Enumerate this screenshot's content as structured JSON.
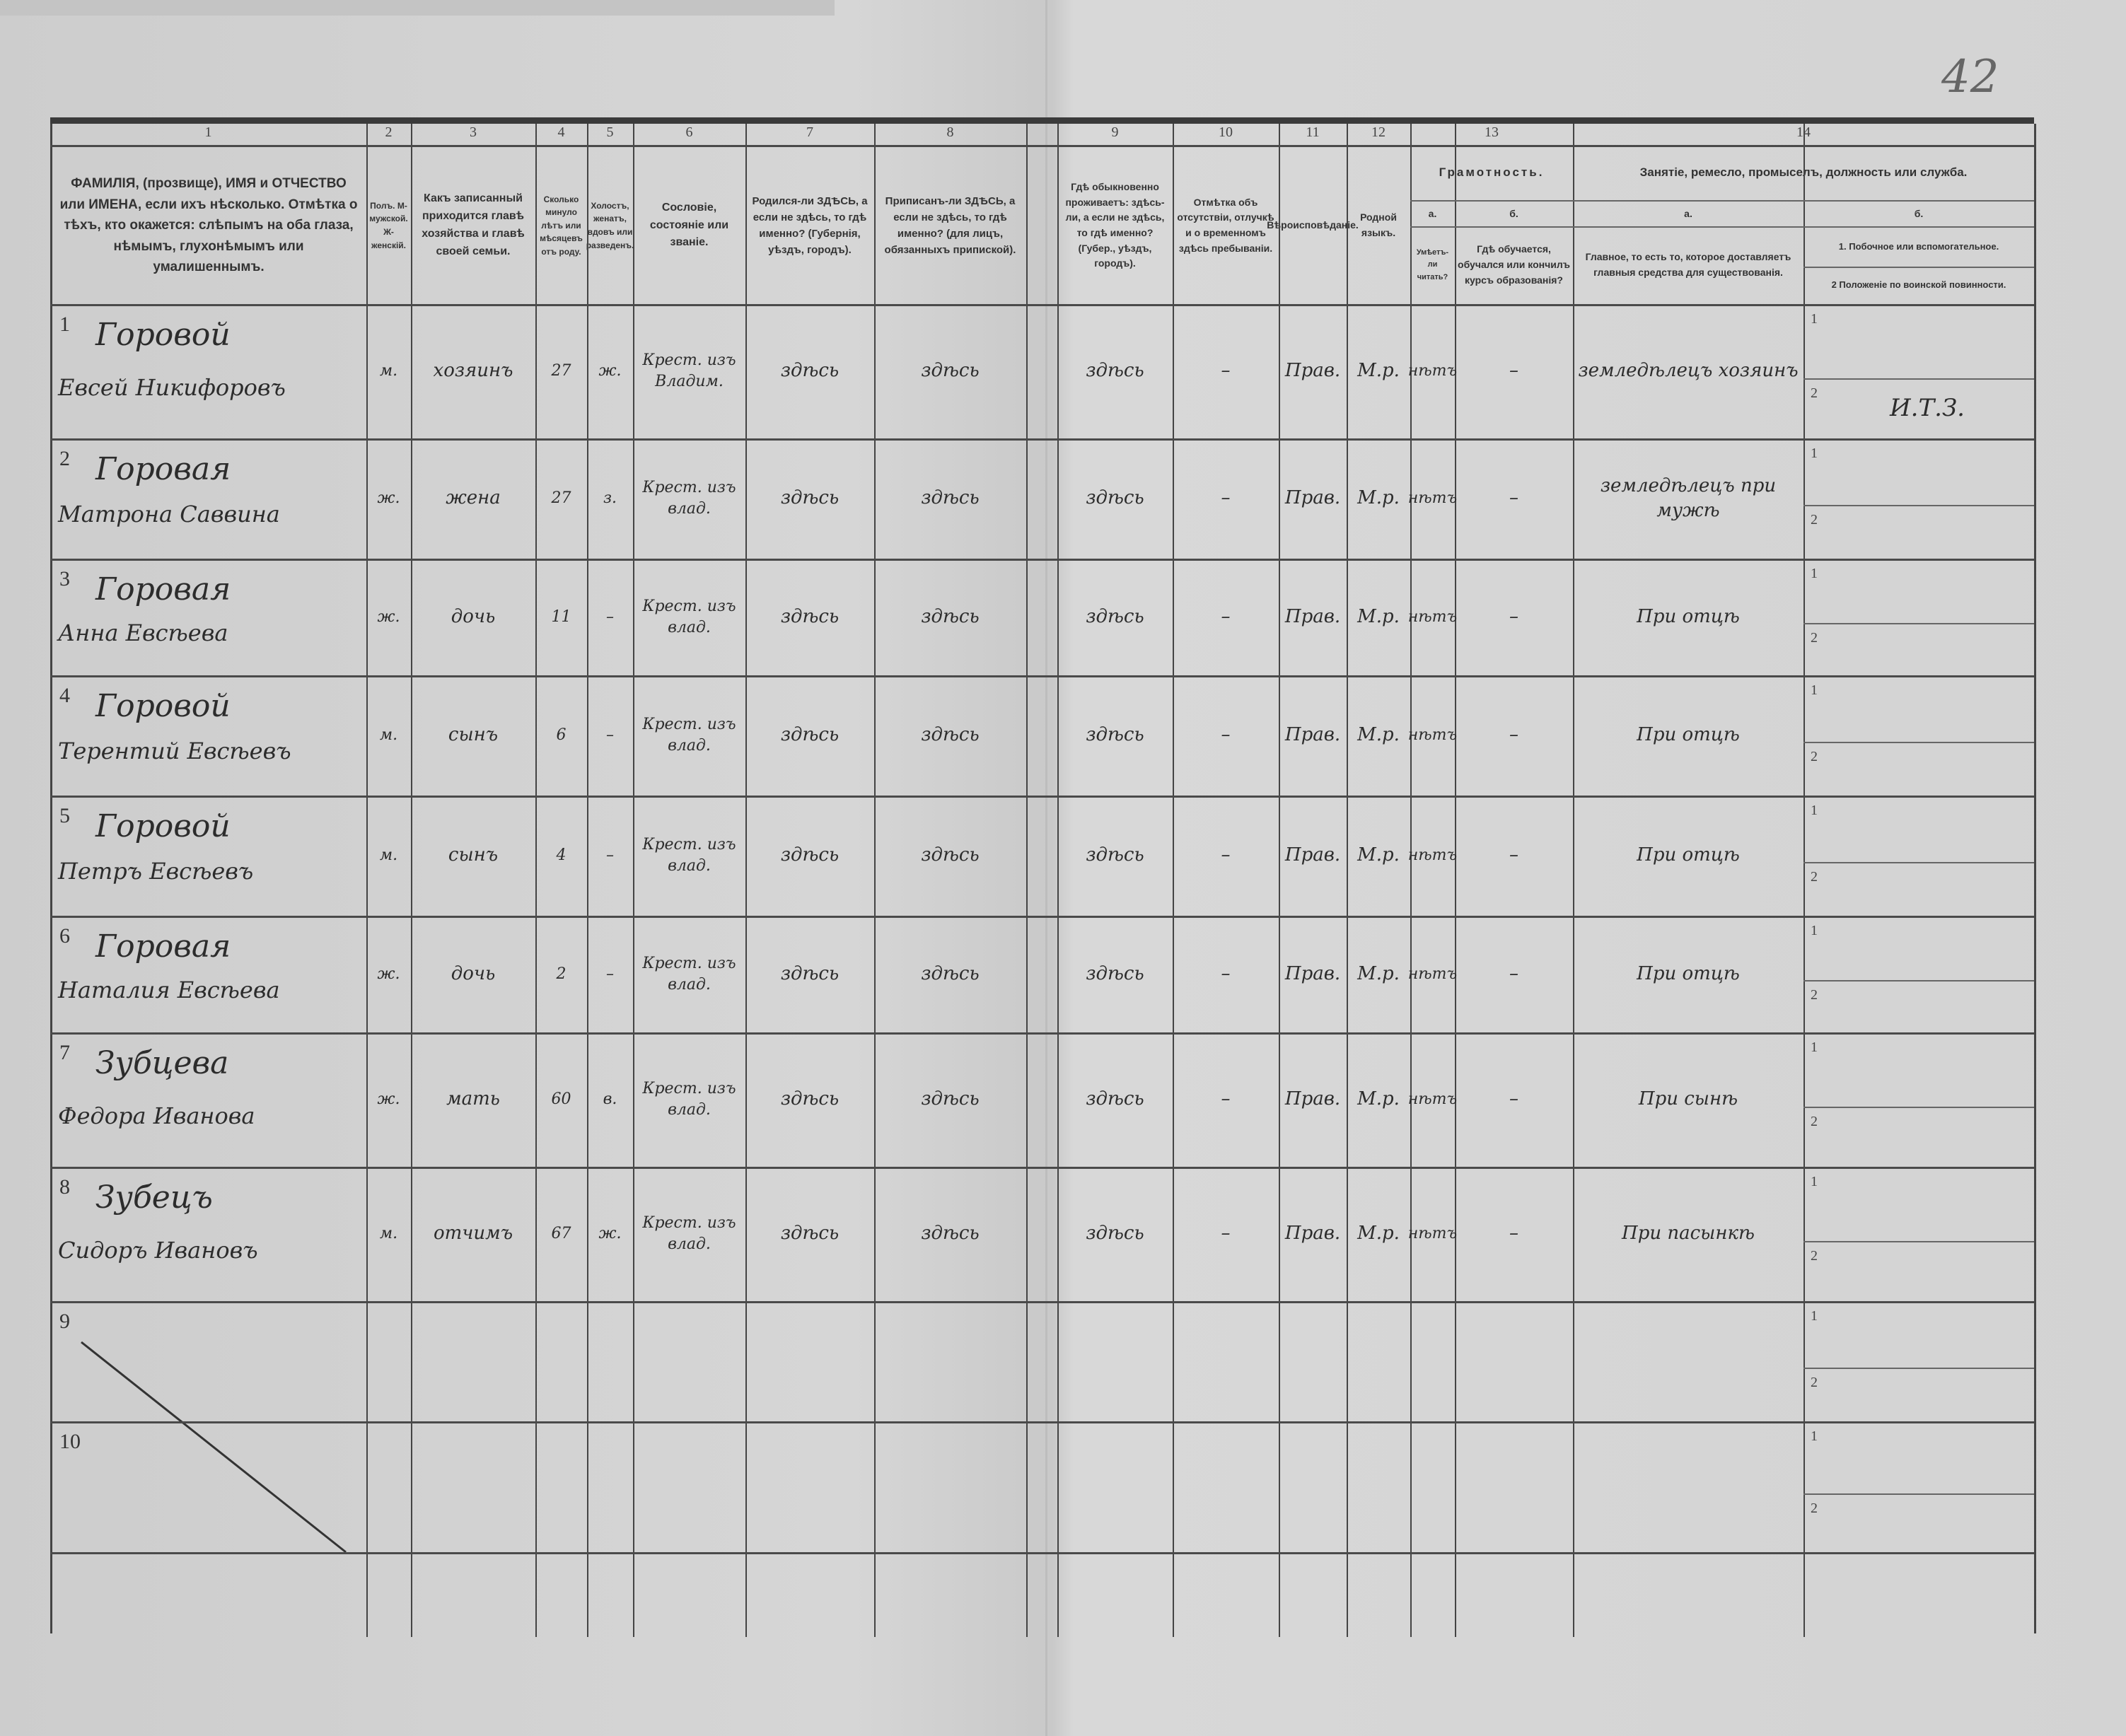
{
  "sheet_number": "42",
  "header": {
    "col_numbers": [
      "1",
      "2",
      "3",
      "4",
      "5",
      "6",
      "7",
      "8",
      "9",
      "10",
      "11",
      "12",
      "13",
      "14"
    ],
    "c1": "ФАМИЛІЯ, (прозвище), ИМЯ и ОТЧЕСТВО или ИМЕНА, если ихъ нѣсколько. Отмѣтка о тѣхъ, кто окажется: слѣпымъ на оба глаза, нѣмымъ, глухонѣмымъ или умалишеннымъ.",
    "c2": "Полъ. М-мужской. Ж-женскій.",
    "c3": "Какъ записанный приходится главѣ хозяйства и главѣ своей семьи.",
    "c4": "Сколько минуло лѣтъ или мѣсяцевъ отъ роду.",
    "c5": "Холостъ, женатъ, вдовъ или разведенъ.",
    "c6": "Сословіе, состояніе или званіе.",
    "c7": "Родился-ли ЗДѢСЬ, а если не здѣсь, то гдѣ именно? (Губернія, уѣздъ, городъ).",
    "c8": "Приписанъ-ли ЗДѢСЬ, а если не здѣсь, то гдѣ именно? (для лицъ, обязанныхъ припиской).",
    "c9": "Гдѣ обыкновенно проживаетъ: здѣсь-ли, а если не здѣсь, то гдѣ именно? (Губер., уѣздъ, городъ).",
    "c10": "Отмѣтка объ отсутствіи, отлучкѣ и о временномъ здѣсь пребываніи.",
    "c11": "Вѣроисповѣданіе.",
    "c12": "Родной языкъ.",
    "c13_title": "Грамотность.",
    "c13a_letter": "а.",
    "c13b_letter": "б.",
    "c13a": "Умѣетъ-ли читать?",
    "c13b": "Гдѣ обучается, обучался или кончилъ курсъ образованія?",
    "c14_title": "Занятіе, ремесло, промыселъ, должность или служба.",
    "c14a_letter": "а.",
    "c14b_letter": "б.",
    "c14a": "Главное, то есть то, которое доставляетъ главныя средства для существованія.",
    "c14b_1": "1. Побочное или вспомогательное.",
    "c14b_2": "2 Положеніе по воинской повинности."
  },
  "sub_labels": [
    "1",
    "2"
  ],
  "rows": [
    {
      "n": "1",
      "surname": "Горовой",
      "given": "Евсей Никифоровъ",
      "sex": "м.",
      "relation": "хозяинъ",
      "age": "27",
      "marital": "ж.",
      "estate": "Крест. изъ Владим.",
      "born": "здѣсь",
      "registered": "здѣсь",
      "resides": "здѣсь",
      "absence": "–",
      "religion": "Прав.",
      "language": "М.р.",
      "can_read": "нѣтъ",
      "education": "–",
      "occupation_main": "земледѣлецъ хозяинъ",
      "occupation_secondary": "",
      "military": "И.Т.З."
    },
    {
      "n": "2",
      "surname": "Горовая",
      "given": "Матрона Саввина",
      "sex": "ж.",
      "relation": "жена",
      "age": "27",
      "marital": "з.",
      "estate": "Крест. изъ влад.",
      "born": "здѣсь",
      "registered": "здѣсь",
      "resides": "здѣсь",
      "absence": "–",
      "religion": "Прав.",
      "language": "М.р.",
      "can_read": "нѣтъ",
      "education": "–",
      "occupation_main": "земледѣлецъ при мужѣ",
      "occupation_secondary": "",
      "military": ""
    },
    {
      "n": "3",
      "surname": "Горовая",
      "given": "Анна Евсѣева",
      "sex": "ж.",
      "relation": "дочь",
      "age": "11",
      "marital": "–",
      "estate": "Крест. изъ влад.",
      "born": "здѣсь",
      "registered": "здѣсь",
      "resides": "здѣсь",
      "absence": "–",
      "religion": "Прав.",
      "language": "М.р.",
      "can_read": "нѣтъ",
      "education": "–",
      "occupation_main": "При отцѣ",
      "occupation_secondary": "",
      "military": ""
    },
    {
      "n": "4",
      "surname": "Горовой",
      "given": "Терентий Евсѣевъ",
      "sex": "м.",
      "relation": "сынъ",
      "age": "6",
      "marital": "–",
      "estate": "Крест. изъ влад.",
      "born": "здѣсь",
      "registered": "здѣсь",
      "resides": "здѣсь",
      "absence": "–",
      "religion": "Прав.",
      "language": "М.р.",
      "can_read": "нѣтъ",
      "education": "–",
      "occupation_main": "При отцѣ",
      "occupation_secondary": "",
      "military": ""
    },
    {
      "n": "5",
      "surname": "Горовой",
      "given": "Петръ Евсѣевъ",
      "sex": "м.",
      "relation": "сынъ",
      "age": "4",
      "marital": "–",
      "estate": "Крест. изъ влад.",
      "born": "здѣсь",
      "registered": "здѣсь",
      "resides": "здѣсь",
      "absence": "–",
      "religion": "Прав.",
      "language": "М.р.",
      "can_read": "нѣтъ",
      "education": "–",
      "occupation_main": "При отцѣ",
      "occupation_secondary": "",
      "military": ""
    },
    {
      "n": "6",
      "surname": "Горовая",
      "given": "Наталия Евсѣева",
      "sex": "ж.",
      "relation": "дочь",
      "age": "2",
      "marital": "–",
      "estate": "Крест. изъ влад.",
      "born": "здѣсь",
      "registered": "здѣсь",
      "resides": "здѣсь",
      "absence": "–",
      "religion": "Прав.",
      "language": "М.р.",
      "can_read": "нѣтъ",
      "education": "–",
      "occupation_main": "При отцѣ",
      "occupation_secondary": "",
      "military": ""
    },
    {
      "n": "7",
      "surname": "Зубцева",
      "given": "Федора Иванова",
      "sex": "ж.",
      "relation": "мать",
      "age": "60",
      "marital": "в.",
      "estate": "Крест. изъ влад.",
      "born": "здѣсь",
      "registered": "здѣсь",
      "resides": "здѣсь",
      "absence": "–",
      "religion": "Прав.",
      "language": "М.р.",
      "can_read": "нѣтъ",
      "education": "–",
      "occupation_main": "При сынѣ",
      "occupation_secondary": "",
      "military": ""
    },
    {
      "n": "8",
      "surname": "Зубецъ",
      "given": "Сидоръ Ивановъ",
      "sex": "м.",
      "relation": "отчимъ",
      "age": "67",
      "marital": "ж.",
      "estate": "Крест. изъ влад.",
      "born": "здѣсь",
      "registered": "здѣсь",
      "resides": "здѣсь",
      "absence": "–",
      "religion": "Прав.",
      "language": "М.р.",
      "can_read": "нѣтъ",
      "education": "–",
      "occupation_main": "При пасынкѣ",
      "occupation_secondary": "",
      "military": ""
    },
    {
      "n": "9",
      "surname": "",
      "given": "",
      "sex": "",
      "relation": "",
      "age": "",
      "marital": "",
      "estate": "",
      "born": "",
      "registered": "",
      "resides": "",
      "absence": "",
      "religion": "",
      "language": "",
      "can_read": "",
      "education": "",
      "occupation_main": "",
      "occupation_secondary": "",
      "military": ""
    },
    {
      "n": "10",
      "surname": "",
      "given": "",
      "sex": "",
      "relation": "",
      "age": "",
      "marital": "",
      "estate": "",
      "born": "",
      "registered": "",
      "resides": "",
      "absence": "",
      "religion": "",
      "language": "",
      "can_read": "",
      "education": "",
      "occupation_main": "",
      "occupation_secondary": "",
      "military": ""
    }
  ]
}
